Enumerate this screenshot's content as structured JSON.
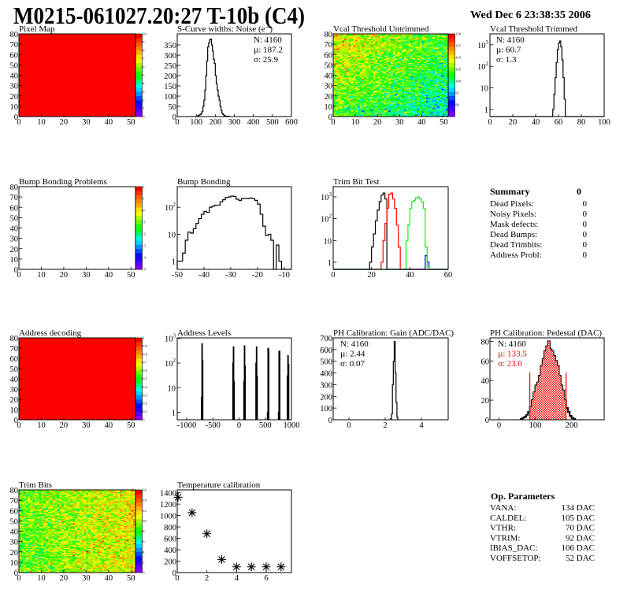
{
  "header": {
    "title": "M0215-061027.20:27 T-10b (C4)",
    "date": "Wed Dec  6 23:38:35 2006"
  },
  "chart_data": [
    {
      "id": "pixel-map",
      "title": "Pixel Map",
      "type": "heatmap",
      "xlim": [
        0,
        52
      ],
      "ylim": [
        0,
        80
      ],
      "xticks": [
        0,
        10,
        20,
        30,
        40,
        50
      ],
      "yticks": [
        0,
        10,
        20,
        30,
        40,
        50,
        60,
        70,
        80
      ],
      "z_range": [
        0,
        10
      ],
      "uniform_value": 10,
      "z_ticks": [
        "0",
        "1",
        "2",
        "3",
        "4",
        "5",
        "6",
        "7",
        "8",
        "9",
        "10"
      ]
    },
    {
      "id": "s-curve-widths",
      "title": "S-Curve widths: Noise (e⁻)",
      "type": "bar",
      "xlim": [
        0,
        600
      ],
      "ylim": [
        0,
        404
      ],
      "xticks": [
        0,
        100,
        200,
        300,
        400,
        500,
        600
      ],
      "yticks": [
        0,
        50,
        100,
        150,
        200,
        250,
        300,
        350
      ],
      "series": [
        {
          "color": "#000000",
          "x_start": 100,
          "bin_width": 5,
          "values": [
            2,
            3,
            5,
            8,
            10,
            15,
            25,
            50,
            80,
            130,
            200,
            270,
            340,
            360,
            375,
            378,
            350,
            320,
            280,
            260,
            200,
            160,
            130,
            100,
            80,
            50,
            30,
            15,
            10,
            5,
            3,
            2,
            2,
            1,
            1
          ]
        }
      ],
      "stats": [
        {
          "text": "N: 4160"
        },
        {
          "text": "µ: 187.2"
        },
        {
          "text": "σ: 25.9"
        }
      ]
    },
    {
      "id": "vcal-threshold-untrimmed",
      "title": "Vcal Threshold Untrimmed",
      "type": "heatmap",
      "xlim": [
        0,
        52
      ],
      "ylim": [
        0,
        80
      ],
      "xticks": [
        0,
        10,
        20,
        30,
        40,
        50
      ],
      "yticks": [
        0,
        10,
        20,
        30,
        40,
        50,
        60,
        70,
        80
      ],
      "z_range": [
        85,
        120
      ],
      "z_ticks": [
        "90",
        "95",
        "100",
        "105",
        "110",
        "115",
        "120"
      ],
      "z_tick_values": [
        90,
        95,
        100,
        105,
        110,
        115,
        120
      ]
    },
    {
      "id": "vcal-threshold-trimmed",
      "title": "Vcal Threshold Trimmed",
      "type": "bar",
      "log_y": true,
      "xlim": [
        0,
        100
      ],
      "ylim": [
        0.47,
        3200
      ],
      "xticks": [
        0,
        20,
        40,
        60,
        80,
        100
      ],
      "yticks": [
        1,
        10,
        100,
        1000
      ],
      "ytick_labels": [
        "1",
        "10",
        "10^2",
        "10^3"
      ],
      "series": [
        {
          "color": "#000000",
          "x_start": 55,
          "bin_width": 1,
          "values": [
            1,
            5,
            30,
            150,
            600,
            1200,
            1500,
            800,
            200,
            30,
            3
          ]
        }
      ],
      "stats": [
        {
          "text": "N: 4160"
        },
        {
          "text": "µ: 60.7"
        },
        {
          "text": "σ:  1.3"
        }
      ]
    },
    {
      "id": "bump-bonding-problems",
      "title": "Bump Bonding Problems",
      "type": "heatmap",
      "xlim": [
        0,
        52
      ],
      "ylim": [
        0,
        80
      ],
      "xticks": [
        0,
        10,
        20,
        30,
        40,
        50
      ],
      "yticks": [
        0,
        10,
        20,
        30,
        40,
        50,
        60,
        70,
        80
      ],
      "z_range": [
        -5,
        2
      ],
      "empty": true,
      "z_ticks": [
        "-5",
        "-4",
        "-3",
        "-2",
        "-1",
        "0",
        "1",
        "2"
      ]
    },
    {
      "id": "bump-bonding",
      "title": "Bump Bonding",
      "type": "bar",
      "log_y": true,
      "xlim": [
        -50,
        -7.3
      ],
      "ylim": [
        0.5,
        580
      ],
      "xticks": [
        -50,
        -40,
        -30,
        -20,
        -10
      ],
      "yticks": [
        1,
        10,
        100
      ],
      "ytick_labels": [
        "1",
        "10",
        "10^2"
      ],
      "series": [
        {
          "color": "#000000",
          "x_start": -50,
          "bin_width": 1,
          "values": [
            1,
            1,
            2,
            6,
            12,
            11,
            16,
            25,
            38,
            55,
            70,
            65,
            100,
            110,
            120,
            120,
            160,
            190,
            230,
            240,
            260,
            250,
            200,
            180,
            210,
            210,
            210,
            220,
            210,
            180,
            130,
            55,
            20,
            9,
            10,
            6,
            0,
            4,
            1,
            0
          ]
        }
      ]
    },
    {
      "id": "trim-bit-test",
      "title": "Trim Bit Test",
      "type": "bar",
      "log_y": true,
      "xlim": [
        0,
        60
      ],
      "ylim": [
        0.47,
        2950
      ],
      "xticks": [
        0,
        20,
        40,
        60
      ],
      "yticks": [
        1,
        10,
        100,
        1000
      ],
      "ytick_labels": [
        "1",
        "10",
        "10^2",
        "10^3"
      ],
      "series": [
        {
          "color": "#000000",
          "x_start": 19,
          "bin_width": 1,
          "values": [
            1,
            5,
            20,
            80,
            250,
            600,
            1200,
            1500,
            800
          ]
        },
        {
          "color": "#ff0000",
          "x_start": 25,
          "bin_width": 1,
          "values": [
            1,
            10,
            60,
            300,
            1300,
            1500,
            800,
            300,
            50,
            5
          ]
        },
        {
          "color": "#0000ff",
          "x_start": 48,
          "bin_width": 1,
          "values": [
            2,
            1
          ]
        },
        {
          "color": "#00ff00",
          "x_start": 38,
          "bin_width": 1,
          "values": [
            10,
            50,
            300,
            600,
            700,
            900,
            1000,
            800,
            600,
            300,
            5,
            0.6
          ]
        }
      ]
    },
    {
      "id": "address-decoding",
      "title": "Address decoding",
      "type": "heatmap",
      "xlim": [
        0,
        52
      ],
      "ylim": [
        0,
        80
      ],
      "xticks": [
        0,
        10,
        20,
        30,
        40,
        50
      ],
      "yticks": [
        0,
        10,
        20,
        30,
        40,
        50,
        60,
        70,
        80
      ],
      "z_range": [
        0,
        1
      ],
      "uniform_value": 1,
      "z_ticks": [
        "0",
        "0.1",
        "0.2",
        "0.3",
        "0.4",
        "0.5",
        "0.6",
        "0.7",
        "0.8",
        "0.9",
        "1"
      ]
    },
    {
      "id": "address-levels",
      "title": "Address Levels",
      "type": "bar",
      "log_y": true,
      "xlim": [
        -1180,
        1000
      ],
      "ylim": [
        0.5,
        1050
      ],
      "xticks": [
        -1000,
        -500,
        0,
        500,
        1000
      ],
      "yticks": [
        1,
        10,
        100,
        1000
      ],
      "ytick_labels": [
        "1",
        "10",
        "10^2",
        "10^3"
      ],
      "series": [
        {
          "color": "#000000",
          "bin_width": 10,
          "bins": [
            [
              -720,
              4
            ],
            [
              -710,
              600
            ],
            [
              -700,
              130
            ],
            [
              -120,
              100
            ],
            [
              -110,
              450
            ],
            [
              -100,
              18
            ],
            [
              90,
              18
            ],
            [
              100,
              500
            ],
            [
              110,
              75
            ],
            [
              320,
              100
            ],
            [
              330,
              450
            ],
            [
              340,
              30
            ],
            [
              540,
              1
            ],
            [
              550,
              400
            ],
            [
              560,
              350
            ],
            [
              750,
              1
            ],
            [
              760,
              300
            ],
            [
              770,
              300
            ],
            [
              920,
              30
            ],
            [
              930,
              200
            ],
            [
              940,
              90
            ]
          ]
        }
      ]
    },
    {
      "id": "ph-calibration-gain",
      "title": "PH Calibration: Gain (ADC/DAC)",
      "type": "bar",
      "xlim": [
        -0.87,
        5.48
      ],
      "ylim": [
        0,
        700
      ],
      "xticks": [
        0,
        2,
        4
      ],
      "yticks": [
        0,
        100,
        200,
        300,
        400,
        500,
        600,
        700
      ],
      "series": [
        {
          "color": "#000000",
          "x_start": 2.3,
          "bin_width": 0.05,
          "values": [
            10,
            50,
            300,
            500,
            670,
            400,
            150,
            20
          ]
        }
      ],
      "stats": [
        {
          "text": "N: 4160"
        },
        {
          "text": "µ: 2.44"
        },
        {
          "text": "σ: 0.07"
        }
      ]
    },
    {
      "id": "ph-calibration-pedestal",
      "title": "PH Calibration: Pedestal (DAC)",
      "type": "bar",
      "xlim": [
        -25,
        290
      ],
      "ylim": [
        0,
        83.5
      ],
      "xticks": [
        0,
        100,
        200
      ],
      "yticks": [
        0,
        20,
        40,
        60,
        80
      ],
      "series": [
        {
          "color": "#000000",
          "x_start": 60,
          "bin_width": 5,
          "thick": true,
          "values": [
            1,
            2,
            3,
            5,
            8,
            13,
            20,
            28,
            35,
            38,
            45,
            55,
            62,
            70,
            75,
            80,
            72,
            70,
            65,
            60,
            55,
            45,
            35,
            30,
            20,
            12,
            8,
            4,
            2,
            1
          ]
        },
        {
          "color": "#ff0000",
          "x_start": 85,
          "bin_width": 5,
          "fill": true,
          "values": [
            13,
            20,
            28,
            35,
            38,
            45,
            55,
            62,
            70,
            75,
            80,
            72,
            70,
            65,
            60,
            55,
            45,
            35,
            30,
            20
          ]
        }
      ],
      "cut_lines": [
        {
          "x": 85,
          "y": 48
        },
        {
          "x": 185,
          "y": 48
        }
      ],
      "stats": [
        {
          "text": "N: 4160",
          "color": "#000000"
        },
        {
          "text": "µ: 133.5",
          "color": "#ff0000"
        },
        {
          "text": "σ: 23.0",
          "color": "#ff0000"
        }
      ]
    },
    {
      "id": "trim-bits",
      "title": "Trim Bits",
      "type": "heatmap",
      "xlim": [
        0,
        52
      ],
      "ylim": [
        0,
        80
      ],
      "xticks": [
        0,
        10,
        20,
        30,
        40,
        50
      ],
      "yticks": [
        0,
        10,
        20,
        30,
        40,
        50,
        60,
        70,
        80
      ],
      "z_range": [
        0,
        16
      ],
      "z_ticks": [
        "0",
        "2",
        "4",
        "6",
        "8",
        "10",
        "12",
        "14",
        "16"
      ],
      "z_tick_values": [
        0,
        2,
        4,
        6,
        8,
        10,
        12,
        14,
        16
      ]
    },
    {
      "id": "temperature-calibration",
      "title": "Temperature calibration",
      "type": "scatter",
      "xlim": [
        0,
        7.7
      ],
      "ylim": [
        0,
        1450
      ],
      "xticks": [
        0,
        2,
        4,
        6
      ],
      "yticks": [
        0,
        200,
        400,
        600,
        800,
        1000,
        1200,
        1400
      ],
      "points": [
        [
          0,
          1320
        ],
        [
          1,
          1050
        ],
        [
          2,
          680
        ],
        [
          3,
          230
        ],
        [
          4,
          100
        ],
        [
          5,
          100
        ],
        [
          6,
          100
        ],
        [
          7,
          100
        ]
      ],
      "marker": "asterisk"
    }
  ],
  "summary": {
    "title": "Summary",
    "total": "0",
    "items": [
      {
        "label": "Dead Pixels:",
        "value": "0"
      },
      {
        "label": "Noisy Pixels:",
        "value": "0"
      },
      {
        "label": "Mask defects:",
        "value": "0"
      },
      {
        "label": "Dead Bumps:",
        "value": "0"
      },
      {
        "label": "Dead Trimbits:",
        "value": "0"
      },
      {
        "label": "Address Probl:",
        "value": "0"
      }
    ]
  },
  "op_parameters": {
    "title": "Op. Parameters",
    "items": [
      {
        "label": "VANA:",
        "value": "134 DAC"
      },
      {
        "label": "CALDEL:",
        "value": "105 DAC"
      },
      {
        "label": "VTHR:",
        "value": "70 DAC"
      },
      {
        "label": "VTRIM:",
        "value": "92 DAC"
      },
      {
        "label": "IBIAS_DAC:",
        "value": "106 DAC"
      },
      {
        "label": "VOFFSETOP:",
        "value": "52 DAC"
      }
    ]
  }
}
